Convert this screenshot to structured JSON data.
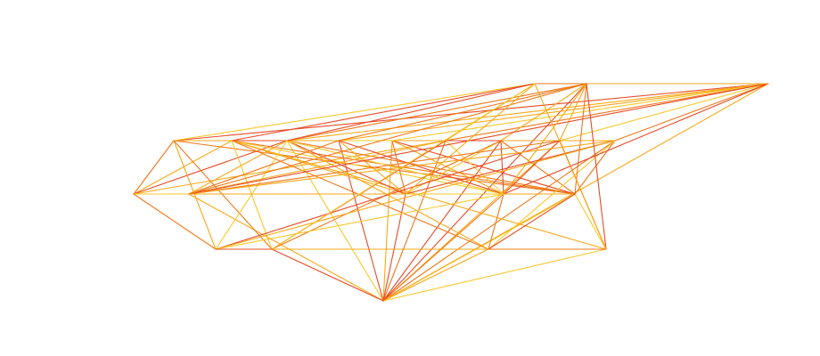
{
  "palette": {
    "background": "#ffffff",
    "edge_colors": [
      "#f07818",
      "#f8a818",
      "#e84a26",
      "#f8c828"
    ]
  },
  "graph": {
    "node_count": 22,
    "edges": [
      [
        0,
        4,
        3
      ],
      [
        0,
        5,
        2
      ],
      [
        0,
        6,
        1
      ],
      [
        0,
        7,
        0
      ],
      [
        0,
        8,
        2
      ],
      [
        0,
        9,
        1
      ],
      [
        0,
        10,
        0
      ],
      [
        0,
        11,
        3
      ],
      [
        0,
        12,
        1
      ],
      [
        0,
        13,
        2
      ],
      [
        0,
        14,
        0
      ],
      [
        0,
        15,
        1
      ],
      [
        0,
        16,
        2
      ],
      [
        0,
        18,
        3
      ],
      [
        0,
        19,
        1
      ],
      [
        0,
        21,
        2
      ],
      [
        1,
        2,
        0
      ],
      [
        1,
        3,
        1
      ],
      [
        1,
        4,
        2
      ],
      [
        1,
        7,
        1
      ],
      [
        1,
        12,
        3
      ],
      [
        1,
        20,
        0
      ],
      [
        2,
        3,
        1
      ],
      [
        2,
        5,
        2
      ],
      [
        2,
        7,
        0
      ],
      [
        2,
        8,
        3
      ],
      [
        2,
        9,
        1
      ],
      [
        2,
        11,
        0
      ],
      [
        2,
        15,
        2
      ],
      [
        2,
        17,
        3
      ],
      [
        2,
        20,
        1
      ],
      [
        2,
        21,
        0
      ],
      [
        3,
        4,
        1
      ],
      [
        3,
        5,
        0
      ],
      [
        3,
        7,
        2
      ],
      [
        3,
        8,
        1
      ],
      [
        3,
        9,
        3
      ],
      [
        3,
        10,
        2
      ],
      [
        3,
        11,
        0
      ],
      [
        3,
        13,
        1
      ],
      [
        3,
        14,
        3
      ],
      [
        3,
        17,
        2
      ],
      [
        3,
        18,
        1
      ],
      [
        3,
        19,
        0
      ],
      [
        3,
        21,
        3
      ],
      [
        4,
        5,
        2
      ],
      [
        4,
        6,
        1
      ],
      [
        4,
        7,
        0
      ],
      [
        4,
        8,
        3
      ],
      [
        4,
        9,
        2
      ],
      [
        4,
        10,
        1
      ],
      [
        4,
        11,
        0
      ],
      [
        4,
        12,
        1
      ],
      [
        4,
        13,
        2
      ],
      [
        4,
        14,
        3
      ],
      [
        4,
        15,
        1
      ],
      [
        4,
        16,
        0
      ],
      [
        4,
        17,
        2
      ],
      [
        4,
        19,
        1
      ],
      [
        4,
        20,
        3
      ],
      [
        5,
        6,
        0
      ],
      [
        5,
        7,
        1
      ],
      [
        5,
        8,
        2
      ],
      [
        5,
        9,
        3
      ],
      [
        5,
        12,
        0
      ],
      [
        5,
        13,
        1
      ],
      [
        5,
        14,
        2
      ],
      [
        5,
        15,
        1
      ],
      [
        5,
        16,
        0
      ],
      [
        6,
        7,
        1
      ],
      [
        6,
        11,
        2
      ],
      [
        6,
        13,
        0
      ],
      [
        6,
        14,
        1
      ],
      [
        6,
        15,
        3
      ],
      [
        7,
        8,
        0
      ],
      [
        7,
        10,
        2
      ],
      [
        7,
        12,
        1
      ],
      [
        7,
        14,
        3
      ],
      [
        7,
        15,
        0
      ],
      [
        7,
        17,
        1
      ],
      [
        7,
        21,
        2
      ],
      [
        8,
        9,
        1
      ],
      [
        8,
        11,
        0
      ],
      [
        8,
        13,
        3
      ],
      [
        8,
        14,
        2
      ],
      [
        8,
        16,
        1
      ],
      [
        8,
        21,
        0
      ],
      [
        9,
        10,
        1
      ],
      [
        9,
        12,
        0
      ],
      [
        9,
        14,
        2
      ],
      [
        9,
        15,
        3
      ],
      [
        9,
        16,
        1
      ],
      [
        9,
        18,
        0
      ],
      [
        9,
        20,
        2
      ],
      [
        10,
        11,
        0
      ],
      [
        10,
        12,
        1
      ],
      [
        10,
        13,
        2
      ],
      [
        10,
        15,
        0
      ],
      [
        10,
        19,
        3
      ],
      [
        10,
        20,
        1
      ],
      [
        11,
        12,
        2
      ],
      [
        11,
        13,
        1
      ],
      [
        11,
        16,
        0
      ],
      [
        11,
        18,
        3
      ],
      [
        11,
        19,
        2
      ],
      [
        12,
        13,
        1
      ],
      [
        12,
        15,
        2
      ],
      [
        12,
        16,
        0
      ],
      [
        13,
        14,
        3
      ],
      [
        13,
        17,
        1
      ],
      [
        14,
        15,
        2
      ],
      [
        14,
        16,
        1
      ],
      [
        14,
        19,
        0
      ],
      [
        14,
        20,
        3
      ],
      [
        15,
        16,
        1
      ],
      [
        16,
        17,
        0
      ],
      [
        16,
        18,
        2
      ],
      [
        17,
        18,
        1
      ],
      [
        17,
        21,
        3
      ],
      [
        18,
        19,
        2
      ],
      [
        18,
        20,
        0
      ],
      [
        19,
        20,
        1
      ],
      [
        20,
        21,
        2
      ]
    ]
  }
}
